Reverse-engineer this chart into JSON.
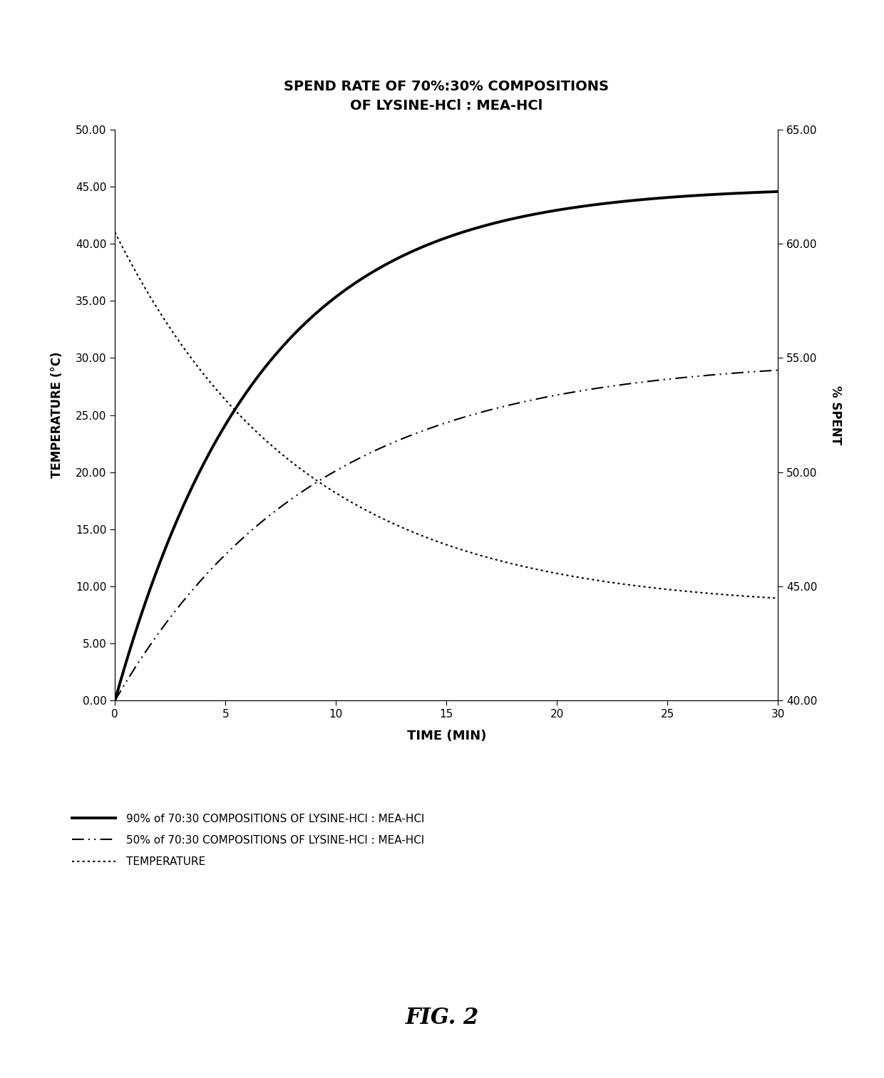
{
  "title": "SPEND RATE OF 70%:30% COMPOSITIONS\nOF LYSINE-HCl : MEA-HCl",
  "xlabel": "TIME (MIN)",
  "ylabel_left": "TEMPERATURE (°C)",
  "ylabel_right": "% SPENT",
  "xlim": [
    0,
    30
  ],
  "ylim_left": [
    0.0,
    50.0
  ],
  "ylim_right": [
    40.0,
    65.0
  ],
  "xticks": [
    0,
    5,
    10,
    15,
    20,
    25,
    30
  ],
  "yticks_left": [
    0.0,
    5.0,
    10.0,
    15.0,
    20.0,
    25.0,
    30.0,
    35.0,
    40.0,
    45.0,
    50.0
  ],
  "yticks_right": [
    40.0,
    45.0,
    50.0,
    55.0,
    60.0,
    65.0
  ],
  "fig_label": "FIG. 2",
  "legend_labels": [
    "90% of 70:30 COMPOSITIONS OF LYSINE-HCl : MEA-HCl",
    "50% of 70:30 COMPOSITIONS OF LYSINE-HCl : MEA-HCl",
    "TEMPERATURE"
  ],
  "line_color": "#000000",
  "background_color": "#ffffff"
}
